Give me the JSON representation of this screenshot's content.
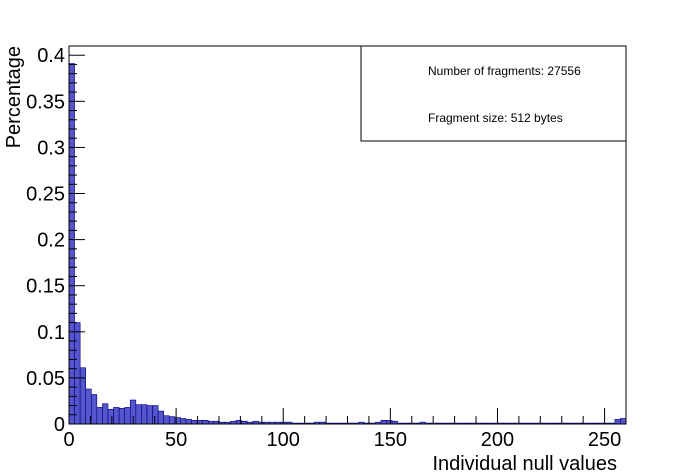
{
  "chart_data": {
    "type": "bar",
    "xlabel": "Individual null values",
    "ylabel": "Percentage",
    "xlim": [
      0,
      260
    ],
    "ylim": [
      0,
      0.41
    ],
    "bin_width": 2.6,
    "bar_color": "#5555cc",
    "edge_color": "#00007f",
    "grid": false,
    "x_ticks": [
      0,
      50,
      100,
      150,
      200,
      250
    ],
    "y_ticks": [
      0,
      0.05,
      0.1,
      0.15,
      0.2,
      0.25,
      0.3,
      0.35,
      0.4
    ],
    "x_tick_labels": [
      "0",
      "50",
      "100",
      "150",
      "200",
      "250"
    ],
    "y_tick_labels": [
      "0",
      "0.05",
      "0.1",
      "0.15",
      "0.2",
      "0.25",
      "0.3",
      "0.35",
      "0.4"
    ],
    "annotations": [
      "Number of fragments: 27556",
      "Fragment size: 512 bytes"
    ],
    "annotation_placement": "top-right",
    "bins_x": [
      0,
      2.6,
      5.2,
      7.8,
      10.4,
      13,
      15.6,
      18.2,
      20.8,
      23.4,
      26,
      28.6,
      31.2,
      33.8,
      36.4,
      39,
      41.6,
      44.2,
      46.8,
      49.4,
      52,
      54.6,
      57.2,
      59.8,
      62.4,
      65,
      67.6,
      70.2,
      72.8,
      75.4,
      78,
      80.6,
      83.2,
      85.8,
      88.4,
      91,
      93.6,
      96.2,
      98.8,
      101.4,
      104,
      106.6,
      109.2,
      111.8,
      114.4,
      117,
      119.6,
      122.2,
      124.8,
      127.4,
      130,
      132.6,
      135.2,
      137.8,
      140.4,
      143,
      145.6,
      148.2,
      150.8,
      153.4,
      156,
      158.6,
      161.2,
      163.8,
      166.4,
      169,
      171.6,
      174.2,
      176.8,
      179.4,
      182,
      184.6,
      187.2,
      189.8,
      192.4,
      195,
      197.6,
      200.2,
      202.8,
      205.4,
      208,
      210.6,
      213.2,
      215.8,
      218.4,
      221,
      223.6,
      226.2,
      228.8,
      231.4,
      234,
      236.6,
      239.2,
      241.8,
      244.4,
      247,
      249.6,
      252.2,
      254.8,
      257.4
    ],
    "values": [
      0.391,
      0.11,
      0.061,
      0.038,
      0.032,
      0.018,
      0.022,
      0.016,
      0.018,
      0.017,
      0.018,
      0.026,
      0.021,
      0.021,
      0.02,
      0.02,
      0.014,
      0.009,
      0.008,
      0.007,
      0.006,
      0.005,
      0.004,
      0.004,
      0.004,
      0.003,
      0.003,
      0.002,
      0.002,
      0.003,
      0.004,
      0.003,
      0.002,
      0.003,
      0.002,
      0.002,
      0.002,
      0.002,
      0.002,
      0.002,
      0.001,
      0.001,
      0.001,
      0.001,
      0.002,
      0.002,
      0.001,
      0.001,
      0.001,
      0.001,
      0.001,
      0.001,
      0.002,
      0.001,
      0.001,
      0.002,
      0.004,
      0.004,
      0.003,
      0.001,
      0.001,
      0.001,
      0.001,
      0.002,
      0.001,
      0.001,
      0.001,
      0.001,
      0.001,
      0.001,
      0.001,
      0.001,
      0.001,
      0.001,
      0.001,
      0.001,
      0.001,
      0.001,
      0.001,
      0.001,
      0.001,
      0.001,
      0.001,
      0.001,
      0.001,
      0.001,
      0.001,
      0.001,
      0.001,
      0.001,
      0.001,
      0.001,
      0.001,
      0.001,
      0.001,
      0.001,
      0.001,
      0.001,
      0.005,
      0.006
    ]
  }
}
